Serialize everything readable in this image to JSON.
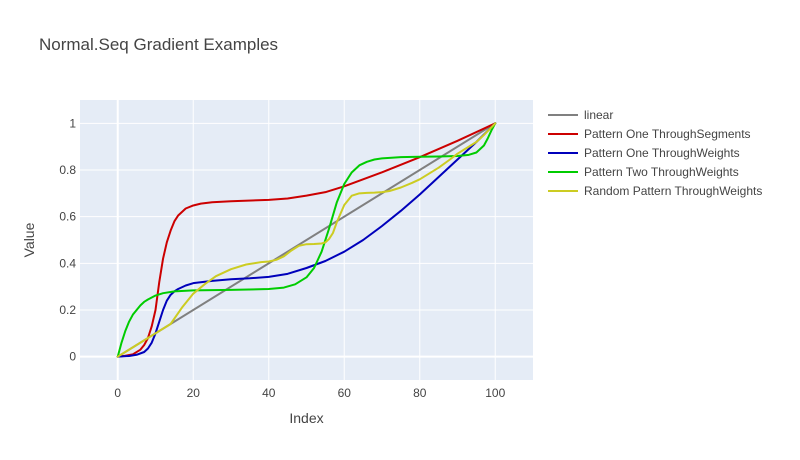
{
  "chart_data": {
    "type": "line",
    "title": "Normal.Seq Gradient Examples",
    "xlabel": "Index",
    "ylabel": "Value",
    "xlim": [
      -10,
      110
    ],
    "ylim": [
      -0.1,
      1.1
    ],
    "xticks": [
      0,
      20,
      40,
      60,
      80,
      100
    ],
    "xtick_labels": [
      "0",
      "20",
      "40",
      "60",
      "80",
      "100"
    ],
    "yticks": [
      0,
      0.2,
      0.4,
      0.6,
      0.8,
      1
    ],
    "ytick_labels": [
      "0",
      "0.2",
      "0.4",
      "0.6",
      "0.8",
      "1"
    ],
    "grid": true,
    "legend_position": "right",
    "series": [
      {
        "name": "linear",
        "color": "#808080",
        "x": [
          0,
          100
        ],
        "y": [
          0,
          1
        ]
      },
      {
        "name": "Pattern One ThroughSegments",
        "color": "#cc0000",
        "x": [
          0,
          2,
          4,
          6,
          7,
          8,
          9,
          10,
          11,
          12,
          13,
          14,
          15,
          16,
          17,
          18,
          20,
          22,
          25,
          30,
          40,
          45,
          50,
          55,
          60,
          70,
          80,
          90,
          100
        ],
        "y": [
          0,
          0.004,
          0.01,
          0.03,
          0.05,
          0.08,
          0.13,
          0.2,
          0.32,
          0.42,
          0.49,
          0.54,
          0.58,
          0.605,
          0.62,
          0.635,
          0.648,
          0.656,
          0.662,
          0.666,
          0.672,
          0.678,
          0.69,
          0.705,
          0.73,
          0.79,
          0.855,
          0.925,
          1.0
        ]
      },
      {
        "name": "Pattern One ThroughWeights",
        "color": "#0000bb",
        "x": [
          0,
          3,
          5,
          7,
          8,
          9,
          10,
          11,
          12,
          13,
          14,
          15,
          16,
          18,
          20,
          25,
          30,
          35,
          40,
          45,
          50,
          55,
          60,
          65,
          70,
          75,
          80,
          85,
          90,
          95,
          100
        ],
        "y": [
          0,
          0.003,
          0.008,
          0.02,
          0.035,
          0.06,
          0.1,
          0.15,
          0.2,
          0.24,
          0.265,
          0.28,
          0.29,
          0.305,
          0.315,
          0.325,
          0.332,
          0.336,
          0.342,
          0.355,
          0.38,
          0.41,
          0.45,
          0.5,
          0.56,
          0.625,
          0.695,
          0.77,
          0.845,
          0.92,
          1.0
        ]
      },
      {
        "name": "Pattern Two ThroughWeights",
        "color": "#00cc00",
        "x": [
          0,
          1,
          2,
          3,
          4,
          5,
          6,
          7,
          8,
          10,
          12,
          15,
          20,
          30,
          40,
          44,
          47,
          50,
          52,
          54,
          56,
          58,
          60,
          62,
          64,
          66,
          68,
          70,
          75,
          80,
          85,
          90,
          93,
          95,
          97,
          98,
          99,
          100
        ],
        "y": [
          0,
          0.06,
          0.11,
          0.15,
          0.18,
          0.2,
          0.22,
          0.235,
          0.245,
          0.262,
          0.272,
          0.28,
          0.284,
          0.286,
          0.29,
          0.296,
          0.31,
          0.34,
          0.38,
          0.45,
          0.55,
          0.66,
          0.74,
          0.79,
          0.82,
          0.835,
          0.845,
          0.85,
          0.855,
          0.857,
          0.858,
          0.86,
          0.865,
          0.875,
          0.905,
          0.935,
          0.97,
          1.0
        ]
      },
      {
        "name": "Random Pattern ThroughWeights",
        "color": "#cccc22",
        "x": [
          0,
          5,
          10,
          14,
          17,
          20,
          23,
          26,
          30,
          34,
          38,
          40,
          42,
          44,
          46,
          48,
          50,
          52,
          54,
          55,
          56,
          57,
          58,
          60,
          62,
          64,
          66,
          68,
          70,
          72,
          75,
          78,
          80,
          82,
          85,
          88,
          90,
          92,
          95,
          97,
          100
        ],
        "y": [
          0,
          0.05,
          0.1,
          0.14,
          0.21,
          0.27,
          0.31,
          0.345,
          0.375,
          0.395,
          0.405,
          0.408,
          0.415,
          0.43,
          0.455,
          0.475,
          0.482,
          0.483,
          0.485,
          0.49,
          0.505,
          0.53,
          0.575,
          0.65,
          0.69,
          0.7,
          0.702,
          0.703,
          0.705,
          0.71,
          0.725,
          0.745,
          0.76,
          0.78,
          0.81,
          0.845,
          0.87,
          0.89,
          0.92,
          0.95,
          1.0
        ]
      }
    ]
  }
}
